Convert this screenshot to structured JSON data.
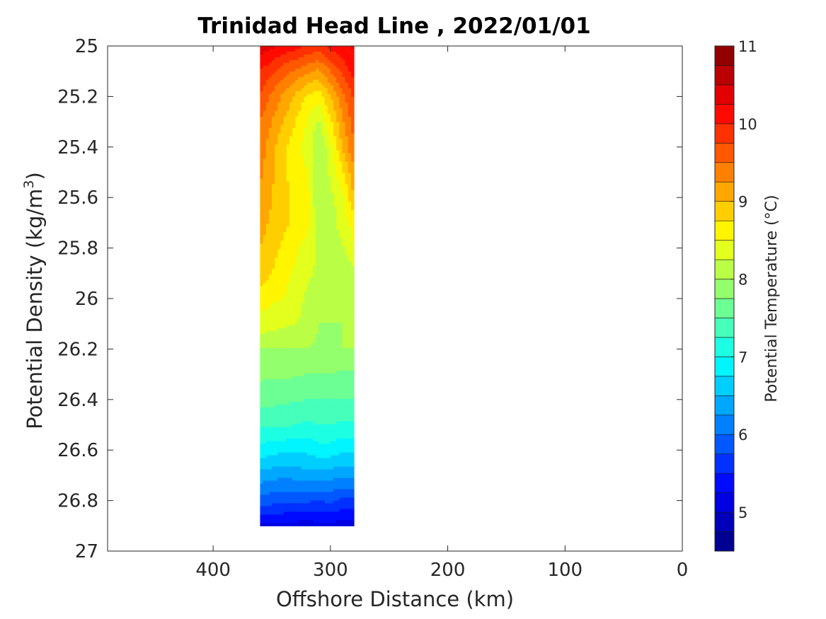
{
  "chart_data": {
    "type": "heatmap",
    "title": "Trinidad Head Line , 2022/01/01",
    "xlabel": "Offshore Distance (km)",
    "ylabel": {
      "text": "Potential Density (kg/m",
      "superscript": "3",
      "suffix": ")"
    },
    "xlim": [
      490,
      0
    ],
    "ylim": [
      25,
      27
    ],
    "x_reversed": true,
    "y_reversed": true,
    "x_ticks": [
      "400",
      "300",
      "200",
      "100",
      "0"
    ],
    "y_ticks": [
      "25",
      "25.2",
      "25.4",
      "25.6",
      "25.8",
      "26",
      "26.2",
      "26.4",
      "26.6",
      "26.8",
      "27"
    ],
    "x_values": [
      360,
      340,
      320,
      310,
      300,
      290,
      280
    ],
    "y_values": [
      25.0,
      25.1,
      25.2,
      25.3,
      25.4,
      25.5,
      25.6,
      25.7,
      25.8,
      25.9,
      26.0,
      26.1,
      26.2,
      26.3,
      26.4,
      26.5,
      26.6,
      26.7,
      26.8,
      26.9
    ],
    "z_values": [
      [
        10.4,
        10.2,
        10.0,
        9.9,
        10.1,
        10.2,
        10.3
      ],
      [
        10.0,
        9.6,
        9.3,
        9.2,
        9.5,
        9.8,
        10.1
      ],
      [
        9.7,
        9.2,
        8.7,
        8.6,
        9.0,
        9.4,
        9.8
      ],
      [
        9.5,
        9.0,
        8.5,
        8.2,
        8.7,
        9.2,
        9.6
      ],
      [
        9.4,
        8.8,
        8.4,
        8.0,
        8.4,
        9.0,
        9.5
      ],
      [
        9.3,
        8.8,
        8.5,
        8.0,
        8.3,
        8.7,
        9.2
      ],
      [
        9.2,
        8.8,
        8.6,
        8.0,
        8.2,
        8.4,
        9.0
      ],
      [
        9.1,
        8.8,
        8.6,
        8.1,
        8.1,
        8.4,
        8.6
      ],
      [
        9.0,
        8.7,
        8.4,
        8.2,
        8.0,
        8.2,
        8.5
      ],
      [
        8.9,
        8.6,
        8.3,
        8.2,
        8.0,
        8.0,
        8.2
      ],
      [
        8.6,
        8.5,
        8.2,
        8.2,
        8.0,
        8.0,
        8.0
      ],
      [
        8.4,
        8.3,
        8.2,
        8.0,
        8.0,
        8.0,
        8.0
      ],
      [
        8.0,
        8.0,
        8.0,
        7.95,
        7.95,
        8.0,
        8.0
      ],
      [
        7.8,
        7.8,
        7.75,
        7.75,
        7.75,
        7.7,
        7.7
      ],
      [
        7.6,
        7.55,
        7.5,
        7.5,
        7.5,
        7.5,
        7.5
      ],
      [
        7.3,
        7.3,
        7.2,
        7.25,
        7.25,
        7.2,
        7.2
      ],
      [
        6.9,
        6.8,
        6.8,
        6.9,
        6.9,
        6.8,
        6.8
      ],
      [
        6.4,
        6.3,
        6.4,
        6.4,
        6.35,
        6.3,
        6.3
      ],
      [
        5.9,
        5.8,
        5.8,
        5.75,
        5.8,
        5.7,
        5.7
      ],
      [
        5.2,
        5.2,
        5.1,
        5.2,
        5.2,
        5.1,
        5.1
      ]
    ],
    "colorbar": {
      "label": "Potential Temperature (°C)",
      "min": 4.5,
      "max": 11,
      "step": 0.25,
      "tick_values": [
        5,
        6,
        7,
        8,
        9,
        10,
        11
      ],
      "tick_labels": [
        "5",
        "6",
        "7",
        "8",
        "9",
        "10",
        "11"
      ],
      "colormap": "jet"
    }
  }
}
